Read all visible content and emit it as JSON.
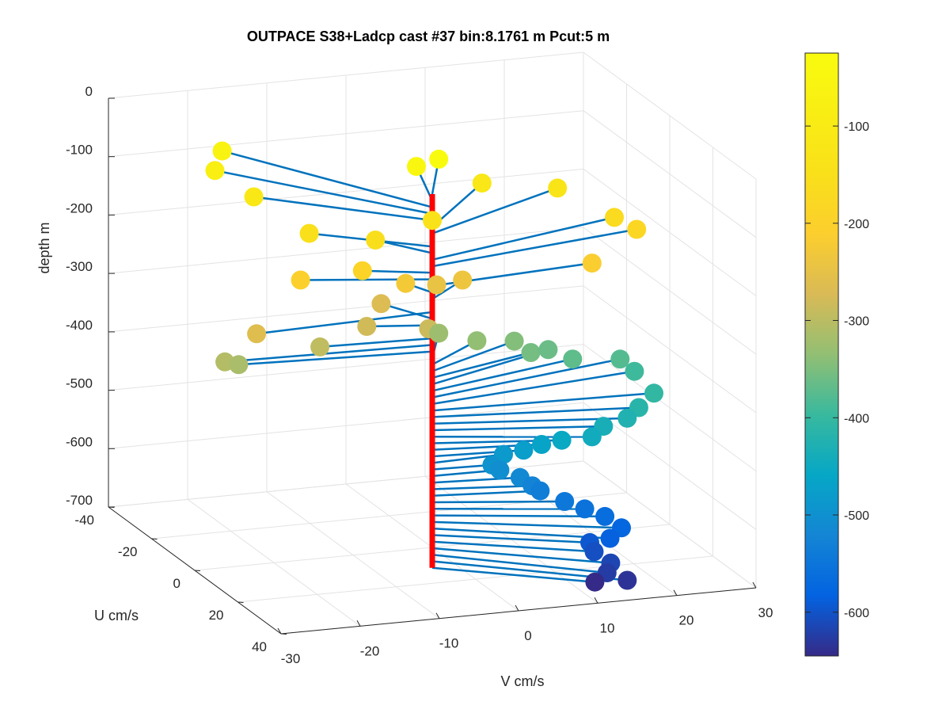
{
  "chart_data": {
    "type": "scatter3d",
    "title": "OUTPACE S38+Ladcp cast #37 bin:8.1761 m  Pcut:5 m",
    "xlabel": "V cm/s",
    "ylabel": "U cm/s",
    "zlabel": "depth m",
    "xlim": [
      -30,
      30
    ],
    "ylim": [
      -40,
      40
    ],
    "zlim": [
      -700,
      0
    ],
    "xticks": [
      "-30",
      "-20",
      "-10",
      "0",
      "10",
      "20",
      "30"
    ],
    "yticks": [
      "-40",
      "-20",
      "0",
      "20",
      "40"
    ],
    "zticks": [
      "0",
      "-100",
      "-200",
      "-300",
      "-400",
      "-500",
      "-600",
      "-700"
    ],
    "grid": true,
    "colorbar": {
      "ticks": [
        "-100",
        "-200",
        "-300",
        "-400",
        "-500",
        "-600"
      ],
      "range": [
        -645,
        -25
      ],
      "colormap": "parula"
    },
    "line_color": "#0072BD",
    "axis_line_color": "#ff0000",
    "vector_origin_depth_range": [
      -95,
      -735
    ],
    "points": [
      {
        "v": 0,
        "u": 3,
        "depth": -27
      },
      {
        "v": -2,
        "u": 0,
        "depth": -45
      },
      {
        "v": -20,
        "u": -24,
        "depth": -60
      },
      {
        "v": -22,
        "u": -20,
        "depth": -80
      },
      {
        "v": -19,
        "u": -13,
        "depth": -110
      },
      {
        "v": 9,
        "u": -10,
        "depth": -115
      },
      {
        "v": 18,
        "u": -8,
        "depth": -130
      },
      {
        "v": 0,
        "u": 0,
        "depth": -140
      },
      {
        "v": -15,
        "u": -2,
        "depth": -148
      },
      {
        "v": -8,
        "u": 3,
        "depth": -155
      },
      {
        "v": 23,
        "u": 0,
        "depth": -165
      },
      {
        "v": 25,
        "u": 3,
        "depth": -180
      },
      {
        "v": -11,
        "u": 8,
        "depth": -190
      },
      {
        "v": -18,
        "u": 5,
        "depth": -205
      },
      {
        "v": 18,
        "u": 8,
        "depth": -215
      },
      {
        "v": -5,
        "u": 6,
        "depth": -225
      },
      {
        "v": 3,
        "u": 3,
        "depth": -238
      },
      {
        "v": 0,
        "u": 2,
        "depth": -245
      },
      {
        "v": -26,
        "u": 14,
        "depth": -262
      },
      {
        "v": -7,
        "u": 2,
        "depth": -268
      },
      {
        "v": -11,
        "u": 10,
        "depth": -280
      },
      {
        "v": -4,
        "u": 13,
        "depth": -285
      },
      {
        "v": -18,
        "u": 14,
        "depth": -295
      },
      {
        "v": -30,
        "u": 14,
        "depth": -305
      },
      {
        "v": -28,
        "u": 13,
        "depth": -315
      },
      {
        "v": 0,
        "u": 3,
        "depth": -325
      },
      {
        "v": 4,
        "u": 6,
        "depth": -335
      },
      {
        "v": 9,
        "u": 5,
        "depth": -345
      },
      {
        "v": 10,
        "u": 9,
        "depth": -355
      },
      {
        "v": 13,
        "u": 6,
        "depth": -362
      },
      {
        "v": 15,
        "u": 10,
        "depth": -370
      },
      {
        "v": 21,
        "u": 10,
        "depth": -378
      },
      {
        "v": 22,
        "u": 13,
        "depth": -392
      },
      {
        "v": 22,
        "u": 22,
        "depth": -405
      },
      {
        "v": 19,
        "u": 26,
        "depth": -415
      },
      {
        "v": 17,
        "u": 28,
        "depth": -425
      },
      {
        "v": 14,
        "u": 28,
        "depth": -435
      },
      {
        "v": 12,
        "u": 30,
        "depth": -445
      },
      {
        "v": 9,
        "u": 27,
        "depth": -455
      },
      {
        "v": 7,
        "u": 25,
        "depth": -465
      },
      {
        "v": 5,
        "u": 24,
        "depth": -475
      },
      {
        "v": 3,
        "u": 22,
        "depth": -485
      },
      {
        "v": 1,
        "u": 24,
        "depth": -495
      },
      {
        "v": 2,
        "u": 24,
        "depth": -505
      },
      {
        "v": 4,
        "u": 26,
        "depth": -515
      },
      {
        "v": 5,
        "u": 28,
        "depth": -525
      },
      {
        "v": 6,
        "u": 28,
        "depth": -535
      },
      {
        "v": 8,
        "u": 32,
        "depth": -545
      },
      {
        "v": 10,
        "u": 34,
        "depth": -555
      },
      {
        "v": 12,
        "u": 36,
        "depth": -565
      },
      {
        "v": 13,
        "u": 40,
        "depth": -575
      },
      {
        "v": 11,
        "u": 42,
        "depth": -585
      },
      {
        "v": 9,
        "u": 40,
        "depth": -595
      },
      {
        "v": 9,
        "u": 42,
        "depth": -605
      },
      {
        "v": 10,
        "u": 46,
        "depth": -615
      },
      {
        "v": 9,
        "u": 48,
        "depth": -625
      },
      {
        "v": 11,
        "u": 50,
        "depth": -635
      },
      {
        "v": 8,
        "u": 46,
        "depth": -645
      }
    ]
  }
}
